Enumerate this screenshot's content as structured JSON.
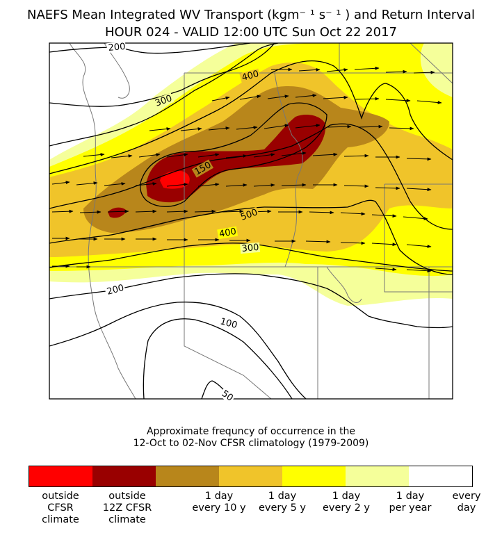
{
  "title": {
    "line1": "NAEFS Mean Integrated WV Transport (kgm⁻ ¹ s⁻ ¹ ) and Return Interval",
    "line2": "HOUR 024 - VALID 12:00 UTC Sun Oct 22 2017"
  },
  "contour_labels": [
    "200",
    "300",
    "400",
    "150",
    "500",
    "400",
    "300",
    "200",
    "100",
    "50"
  ],
  "caption": {
    "line1": "Approximate frequncy of occurrence in the",
    "line2": "12-Oct to 02-Nov CFSR climatology (1979-2009)"
  },
  "colorbar": {
    "colors": [
      "#ff0000",
      "#990000",
      "#b8861b",
      "#f0c42a",
      "#ffff00",
      "#f5ff9a",
      "#ffffff"
    ],
    "labels": [
      "outside\nCFSR\nclimate",
      "outside\n12Z CFSR\nclimate",
      "1 day\nevery 10 y",
      "1 day\nevery 5 y",
      "1 day\nevery 2 y",
      "1 day\nper year",
      "every\nday"
    ]
  }
}
